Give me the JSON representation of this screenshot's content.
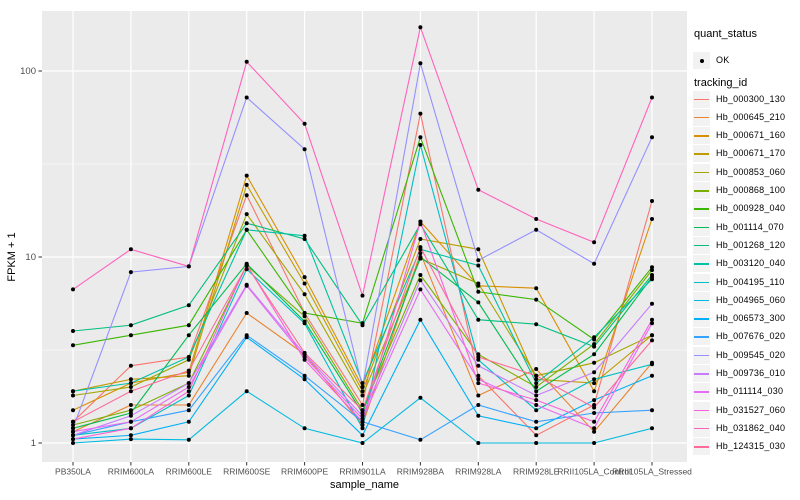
{
  "chart_data": {
    "type": "line",
    "title": "",
    "xlabel": "sample_name",
    "ylabel": "FPKM + 1",
    "y_scale": "log10",
    "y_ticks": [
      1,
      10,
      100
    ],
    "y_tick_labels": [
      "1",
      "10",
      "100"
    ],
    "y_minor_ticks": [
      3.162,
      31.62
    ],
    "ylim": [
      0.95,
      210
    ],
    "grid": true,
    "legend_position": "right",
    "panel_bg": "#EBEBEB",
    "grid_color": "#FFFFFF",
    "tick_label_color": "#4D4D4D",
    "point_color": "#000000",
    "categories": [
      "PB350LA",
      "RRIM600LA",
      "RRIM600LE",
      "RRIM600SE",
      "RRIM600PE",
      "RRIM901LA",
      "RRIM928BA",
      "RRIM928LA",
      "RRIM928LE",
      "RRII105LA_Control",
      "RRII105LA_Stressed"
    ],
    "series": [
      {
        "name": "Hb_000300_130",
        "color": "#F8766D",
        "values": [
          1.3,
          2.6,
          2.9,
          21.5,
          5.0,
          1.6,
          59,
          2.3,
          1.1,
          1.6,
          20
        ]
      },
      {
        "name": "Hb_000645_210",
        "color": "#EA8331",
        "values": [
          1.15,
          1.6,
          1.6,
          5.0,
          3.0,
          1.25,
          10.5,
          1.8,
          2.5,
          1.15,
          2.7
        ]
      },
      {
        "name": "Hb_000671_160",
        "color": "#D89000",
        "values": [
          1.5,
          2.1,
          2.4,
          27.4,
          7.8,
          2.0,
          15.5,
          7.0,
          6.8,
          1.9,
          16
        ]
      },
      {
        "name": "Hb_000671_170",
        "color": "#C09B00",
        "values": [
          1.9,
          2.2,
          2.3,
          24.4,
          7.2,
          1.9,
          12.5,
          11,
          2.2,
          2.1,
          3.8
        ]
      },
      {
        "name": "Hb_000853_060",
        "color": "#A3A500",
        "values": [
          1.8,
          2.0,
          2.8,
          17,
          6.3,
          1.8,
          9.8,
          7.2,
          2.3,
          2.7,
          3.8
        ]
      },
      {
        "name": "Hb_000868_100",
        "color": "#7CAE00",
        "values": [
          1.25,
          1.5,
          2.1,
          9.0,
          4.8,
          1.5,
          8.0,
          3.0,
          2.0,
          3.4,
          8.5
        ]
      },
      {
        "name": "Hb_000928_040",
        "color": "#39B600",
        "values": [
          3.35,
          3.8,
          4.3,
          14,
          5.0,
          4.4,
          44,
          6.5,
          5.9,
          3.6,
          8.8
        ]
      },
      {
        "name": "Hb_001114_070",
        "color": "#00BB4E",
        "values": [
          1.2,
          1.45,
          3.8,
          9.2,
          4.5,
          1.45,
          10,
          5.7,
          1.9,
          3.0,
          7.8
        ]
      },
      {
        "name": "Hb_001268_120",
        "color": "#00BF7D",
        "values": [
          4.0,
          4.3,
          5.5,
          15.2,
          12.5,
          4.3,
          15,
          4.6,
          4.35,
          3.3,
          8.0
        ]
      },
      {
        "name": "Hb_003120_040",
        "color": "#00C1A3",
        "values": [
          1.9,
          2.1,
          2.9,
          14,
          13,
          2.1,
          11,
          9.0,
          2.1,
          3.7,
          7.6
        ]
      },
      {
        "name": "Hb_004195_110",
        "color": "#00BFC4",
        "values": [
          1.1,
          1.2,
          1.8,
          8.6,
          4.4,
          1.2,
          40,
          2.8,
          1.5,
          2.2,
          2.65
        ]
      },
      {
        "name": "Hb_004965_060",
        "color": "#00BAE0",
        "values": [
          1.0,
          1.05,
          1.04,
          1.9,
          1.2,
          1.0,
          1.75,
          1.0,
          1.0,
          1.0,
          1.2
        ]
      },
      {
        "name": "Hb_006573_300",
        "color": "#00B0F6",
        "values": [
          1.05,
          1.1,
          1.3,
          3.7,
          2.2,
          1.1,
          4.6,
          1.4,
          1.2,
          1.7,
          2.3
        ]
      },
      {
        "name": "Hb_007676_020",
        "color": "#35A2FF",
        "values": [
          1.1,
          1.3,
          1.5,
          3.8,
          2.3,
          1.3,
          1.04,
          1.6,
          1.3,
          1.45,
          1.5
        ]
      },
      {
        "name": "Hb_009545_020",
        "color": "#9590FF",
        "values": [
          1.2,
          8.3,
          8.9,
          72,
          38,
          2.0,
          110,
          9.6,
          14,
          9.2,
          44
        ]
      },
      {
        "name": "Hb_009736_010",
        "color": "#C77CFF",
        "values": [
          1.1,
          1.4,
          2.1,
          7.1,
          3.0,
          1.4,
          7.5,
          2.6,
          1.8,
          2.4,
          5.6
        ]
      },
      {
        "name": "Hb_011114_030",
        "color": "#E76BF3",
        "values": [
          1.15,
          1.3,
          2.0,
          7.0,
          2.9,
          1.35,
          6.7,
          2.2,
          1.6,
          1.2,
          4.4
        ]
      },
      {
        "name": "Hb_031527_060",
        "color": "#FA62DB",
        "values": [
          1.05,
          1.2,
          1.9,
          9.1,
          2.8,
          1.3,
          15.5,
          2.1,
          1.7,
          1.3,
          4.6
        ]
      },
      {
        "name": "Hb_031862_040",
        "color": "#FF62BC",
        "values": [
          6.7,
          11,
          8.9,
          112,
          52,
          6.2,
          172,
          23,
          16,
          12,
          72
        ]
      },
      {
        "name": "Hb_124315_030",
        "color": "#FF6A98",
        "values": [
          1.3,
          1.9,
          2.45,
          9.0,
          3.05,
          1.5,
          11.3,
          2.9,
          2.3,
          1.55,
          3.56
        ]
      }
    ]
  },
  "axes": {
    "x_title": "sample_name",
    "y_title": "FPKM + 1"
  },
  "legend": {
    "quant_title": "quant_status",
    "quant_items": [
      {
        "label": "OK",
        "marker": "black-point"
      }
    ],
    "tracking_title": "tracking_id"
  }
}
